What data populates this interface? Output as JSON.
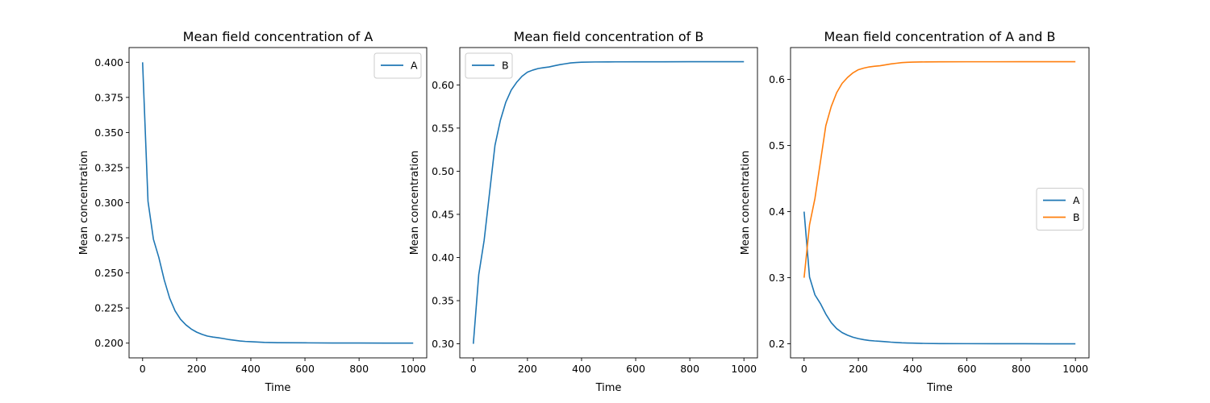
{
  "chart_data": [
    {
      "type": "line",
      "title": "Mean field concentration of A",
      "xlabel": "Time",
      "ylabel": "Mean concentration",
      "xlim": [
        -50,
        1050
      ],
      "ylim": [
        0.1895,
        0.4105
      ],
      "xticks": [
        0,
        200,
        400,
        600,
        800,
        1000
      ],
      "xtick_labels": [
        "0",
        "200",
        "400",
        "600",
        "800",
        "1000"
      ],
      "yticks": [
        0.2,
        0.225,
        0.25,
        0.275,
        0.3,
        0.325,
        0.35,
        0.375,
        0.4
      ],
      "ytick_labels": [
        "0.200",
        "0.225",
        "0.250",
        "0.275",
        "0.300",
        "0.325",
        "0.350",
        "0.375",
        "0.400"
      ],
      "legend_position": "top-right",
      "grid": false,
      "series": [
        {
          "name": "A",
          "color": "#1f77b4",
          "x": [
            0,
            20,
            40,
            60,
            80,
            100,
            120,
            140,
            160,
            180,
            200,
            220,
            240,
            260,
            280,
            300,
            320,
            340,
            360,
            380,
            400,
            450,
            500,
            600,
            700,
            800,
            900,
            1000
          ],
          "y": [
            0.4,
            0.301,
            0.274,
            0.261,
            0.245,
            0.232,
            0.223,
            0.217,
            0.213,
            0.21,
            0.2078,
            0.2062,
            0.205,
            0.2043,
            0.2038,
            0.2032,
            0.2025,
            0.202,
            0.2015,
            0.2012,
            0.201,
            0.2005,
            0.2003,
            0.2002,
            0.2001,
            0.2001,
            0.2,
            0.2
          ]
        }
      ]
    },
    {
      "type": "line",
      "title": "Mean field concentration of B",
      "xlabel": "Time",
      "ylabel": "Mean concentration",
      "xlim": [
        -50,
        1050
      ],
      "ylim": [
        0.2837,
        0.6433
      ],
      "xticks": [
        0,
        200,
        400,
        600,
        800,
        1000
      ],
      "xtick_labels": [
        "0",
        "200",
        "400",
        "600",
        "800",
        "1000"
      ],
      "yticks": [
        0.3,
        0.35,
        0.4,
        0.45,
        0.5,
        0.55,
        0.6
      ],
      "ytick_labels": [
        "0.30",
        "0.35",
        "0.40",
        "0.45",
        "0.50",
        "0.55",
        "0.60"
      ],
      "legend_position": "top-left",
      "grid": false,
      "series": [
        {
          "name": "B",
          "color": "#1f77b4",
          "x": [
            0,
            20,
            40,
            60,
            80,
            100,
            120,
            140,
            160,
            180,
            200,
            220,
            240,
            260,
            280,
            300,
            320,
            340,
            360,
            380,
            400,
            450,
            500,
            600,
            700,
            800,
            900,
            1000
          ],
          "y": [
            0.3,
            0.38,
            0.42,
            0.475,
            0.53,
            0.559,
            0.58,
            0.594,
            0.603,
            0.61,
            0.6148,
            0.6172,
            0.619,
            0.62,
            0.6208,
            0.6222,
            0.6235,
            0.6245,
            0.6255,
            0.626,
            0.6263,
            0.6266,
            0.6267,
            0.6268,
            0.6268,
            0.6269,
            0.6269,
            0.6269
          ]
        }
      ]
    },
    {
      "type": "line",
      "title": "Mean field concentration of A and B",
      "xlabel": "Time",
      "ylabel": "Mean concentration",
      "xlim": [
        -50,
        1050
      ],
      "ylim": [
        0.1787,
        0.6483
      ],
      "xticks": [
        0,
        200,
        400,
        600,
        800,
        1000
      ],
      "xtick_labels": [
        "0",
        "200",
        "400",
        "600",
        "800",
        "1000"
      ],
      "yticks": [
        0.2,
        0.3,
        0.4,
        0.5,
        0.6
      ],
      "ytick_labels": [
        "0.2",
        "0.3",
        "0.4",
        "0.5",
        "0.6"
      ],
      "legend_position": "center-right",
      "grid": false,
      "series": [
        {
          "name": "A",
          "color": "#1f77b4",
          "x": [
            0,
            20,
            40,
            60,
            80,
            100,
            120,
            140,
            160,
            180,
            200,
            220,
            240,
            260,
            280,
            300,
            320,
            340,
            360,
            380,
            400,
            450,
            500,
            600,
            700,
            800,
            900,
            1000
          ],
          "y": [
            0.4,
            0.301,
            0.274,
            0.261,
            0.245,
            0.232,
            0.223,
            0.217,
            0.213,
            0.21,
            0.2078,
            0.2062,
            0.205,
            0.2043,
            0.2038,
            0.2032,
            0.2025,
            0.202,
            0.2015,
            0.2012,
            0.201,
            0.2005,
            0.2003,
            0.2002,
            0.2001,
            0.2001,
            0.2,
            0.2
          ]
        },
        {
          "name": "B",
          "color": "#ff7f0e",
          "x": [
            0,
            20,
            40,
            60,
            80,
            100,
            120,
            140,
            160,
            180,
            200,
            220,
            240,
            260,
            280,
            300,
            320,
            340,
            360,
            380,
            400,
            450,
            500,
            600,
            700,
            800,
            900,
            1000
          ],
          "y": [
            0.3,
            0.38,
            0.42,
            0.475,
            0.53,
            0.559,
            0.58,
            0.594,
            0.603,
            0.61,
            0.6148,
            0.6172,
            0.619,
            0.62,
            0.6208,
            0.6222,
            0.6235,
            0.6245,
            0.6255,
            0.626,
            0.6263,
            0.6266,
            0.6267,
            0.6268,
            0.6268,
            0.6269,
            0.6269,
            0.6269
          ]
        }
      ]
    }
  ]
}
